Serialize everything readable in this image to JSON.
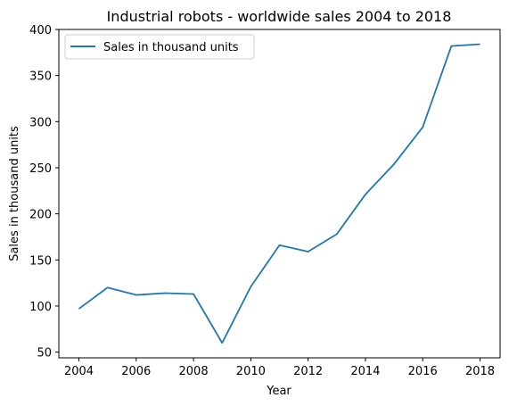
{
  "chart_data": {
    "type": "line",
    "title": "Industrial robots - worldwide sales 2004 to 2018",
    "xlabel": "Year",
    "ylabel": "Sales in thousand units",
    "x": [
      2004,
      2005,
      2006,
      2007,
      2008,
      2009,
      2010,
      2011,
      2012,
      2013,
      2014,
      2015,
      2016,
      2017,
      2018
    ],
    "series": [
      {
        "name": "Sales in thousand units",
        "color": "#1f77b4",
        "values": [
          97,
          120,
          112,
          114,
          113,
          60,
          121,
          166,
          159,
          178,
          221,
          254,
          294,
          382,
          384
        ]
      }
    ],
    "xlim": [
      2003.3,
      2018.7
    ],
    "ylim": [
      43.8,
      400
    ],
    "xticks": [
      "2004",
      "2006",
      "2008",
      "2010",
      "2012",
      "2014",
      "2016",
      "2018"
    ],
    "yticks": [
      "50",
      "100",
      "150",
      "200",
      "250",
      "300",
      "350",
      "400"
    ],
    "grid": false,
    "legend_position": "top-left"
  }
}
